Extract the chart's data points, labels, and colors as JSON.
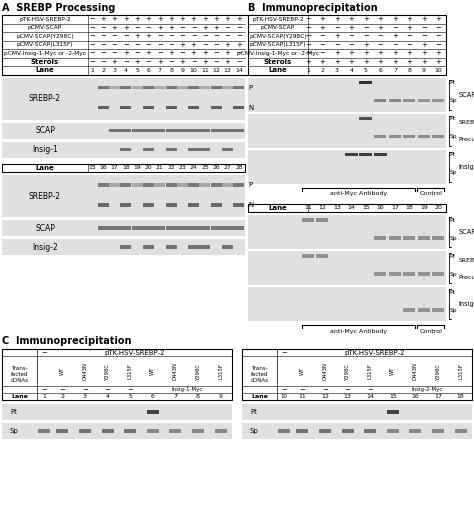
{
  "bg_color": "#ffffff",
  "blot_bg": "#e0e0e0",
  "band_dark": "#282828",
  "band_mid": "#484848",
  "band_light": "#686868",
  "band_faint": "#909090"
}
